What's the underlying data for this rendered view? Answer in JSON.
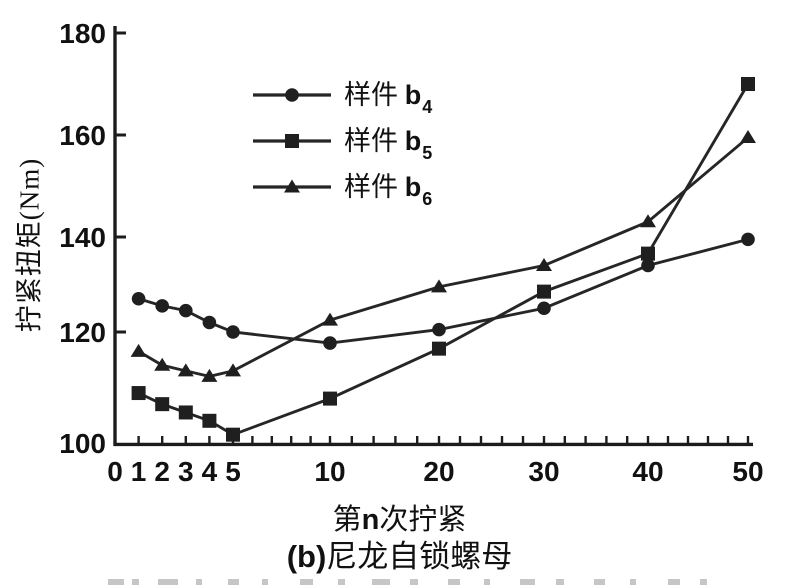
{
  "figure": {
    "caption_marker": "(b)",
    "caption_text": "尼龙自锁螺母",
    "xlabel_parts": {
      "pre": "第",
      "n": "n",
      "post": "次拧紧"
    }
  },
  "chart_data": {
    "type": "line",
    "title": "",
    "xlabel": "第n次拧紧",
    "ylabel": "拧紧扭矩(Nm)",
    "xlim": [
      0,
      50
    ],
    "ylim": [
      100,
      180
    ],
    "grid": false,
    "x_axis_nonlinear": true,
    "legend_position": "upper-left-inside",
    "line_color": "#262626",
    "x_tick_labels": [
      "0",
      "1",
      "2",
      "3",
      "4",
      "5",
      "10",
      "20",
      "30",
      "40",
      "50"
    ],
    "x_tick_values": [
      0,
      1,
      2,
      3,
      4,
      5,
      10,
      20,
      30,
      40,
      50
    ],
    "y_ticks": [
      100,
      120,
      140,
      160,
      180
    ],
    "x": [
      1,
      2,
      3,
      4,
      5,
      10,
      20,
      30,
      40,
      50
    ],
    "series": [
      {
        "name": "样件 b4",
        "label_base": "样件 ",
        "label_b": "b",
        "label_sub": "4",
        "marker": "circle",
        "values": [
          127,
          125.5,
          124.5,
          122,
          120,
          118,
          120.5,
          125,
          134,
          139.5
        ]
      },
      {
        "name": "样件 b5",
        "label_base": "样件 ",
        "label_b": "b",
        "label_sub": "5",
        "marker": "square",
        "values": [
          109,
          107,
          105.5,
          104,
          101.5,
          108,
          117,
          128.5,
          136.5,
          170
        ]
      },
      {
        "name": "样件 b6",
        "label_base": "样件 ",
        "label_b": "b",
        "label_sub": "6",
        "marker": "triangle",
        "values": [
          116.5,
          114,
          113,
          112,
          113,
          122.5,
          129.5,
          134,
          143,
          159.5
        ]
      }
    ]
  }
}
